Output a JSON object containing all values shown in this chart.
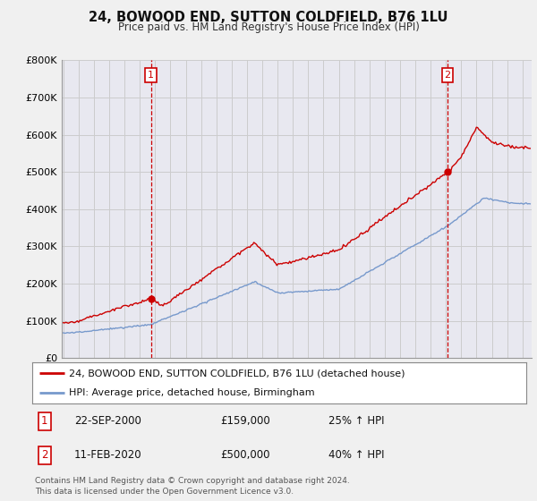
{
  "title": "24, BOWOOD END, SUTTON COLDFIELD, B76 1LU",
  "subtitle": "Price paid vs. HM Land Registry's House Price Index (HPI)",
  "title_fontsize": 10.5,
  "subtitle_fontsize": 8.5,
  "ylabel_ticks": [
    "£0",
    "£100K",
    "£200K",
    "£300K",
    "£400K",
    "£500K",
    "£600K",
    "£700K",
    "£800K"
  ],
  "ytick_values": [
    0,
    100000,
    200000,
    300000,
    400000,
    500000,
    600000,
    700000,
    800000
  ],
  "ylim": [
    0,
    800000
  ],
  "xlim_start": 1994.9,
  "xlim_end": 2025.6,
  "grid_color": "#cccccc",
  "background_color": "#f0f0f0",
  "plot_bg_color": "#e8e8f0",
  "red_line_color": "#cc0000",
  "blue_line_color": "#7799cc",
  "marker1_x": 2000.72,
  "marker1_y": 159000,
  "marker2_x": 2020.11,
  "marker2_y": 500000,
  "vline1_x": 2000.72,
  "vline2_x": 2020.11,
  "legend_label_red": "24, BOWOOD END, SUTTON COLDFIELD, B76 1LU (detached house)",
  "legend_label_blue": "HPI: Average price, detached house, Birmingham",
  "note1_num": "1",
  "note1_date": "22-SEP-2000",
  "note1_price": "£159,000",
  "note1_pct": "25% ↑ HPI",
  "note2_num": "2",
  "note2_date": "11-FEB-2020",
  "note2_price": "£500,000",
  "note2_pct": "40% ↑ HPI",
  "footer": "Contains HM Land Registry data © Crown copyright and database right 2024.\nThis data is licensed under the Open Government Licence v3.0."
}
